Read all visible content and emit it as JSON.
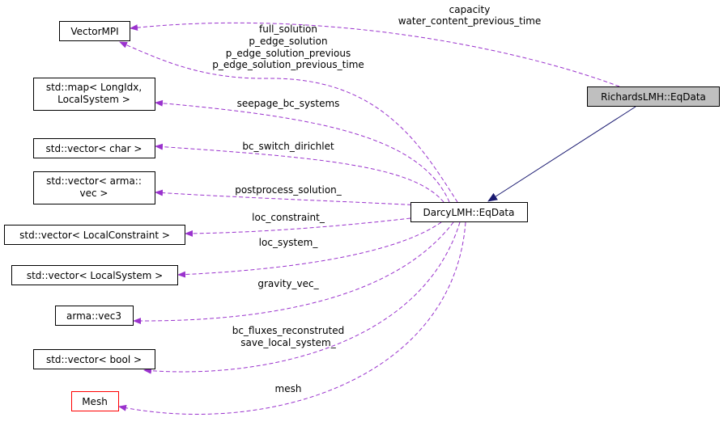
{
  "colors": {
    "usage_edge": "#9a32cd",
    "inheritance_edge": "#191970",
    "focus_fill": "#bfbfbf",
    "undocumented_border": "#ff0000"
  },
  "nodes": {
    "vector_mpi": "VectorMPI",
    "std_map": [
      "std::map< LongIdx,",
      "LocalSystem >"
    ],
    "vector_char": "std::vector< char >",
    "vector_arma_vec": [
      "std::vector< arma::",
      "vec >"
    ],
    "vector_local_constraint": "std::vector< LocalConstraint >",
    "vector_local_system": "std::vector< LocalSystem >",
    "arma_vec3": "arma::vec3",
    "vector_bool": "std::vector< bool >",
    "mesh": "Mesh",
    "darcy_eqdata": "DarcyLMH::EqData",
    "richards_eqdata": "RichardsLMH::EqData"
  },
  "edge_labels": {
    "richards_vector_mpi": [
      "capacity",
      "water_content_previous_time"
    ],
    "darcy_vector_mpi": [
      "full_solution",
      "p_edge_solution",
      "p_edge_solution_previous",
      "p_edge_solution_previous_time"
    ],
    "std_map": "seepage_bc_systems",
    "vector_char": "bc_switch_dirichlet",
    "vector_arma_vec": "postprocess_solution_",
    "vector_local_constraint": "loc_constraint_",
    "vector_local_system": "loc_system_",
    "arma_vec3": "gravity_vec_",
    "vector_bool": [
      "bc_fluxes_reconstruted",
      "save_local_system_"
    ],
    "mesh": "mesh"
  }
}
